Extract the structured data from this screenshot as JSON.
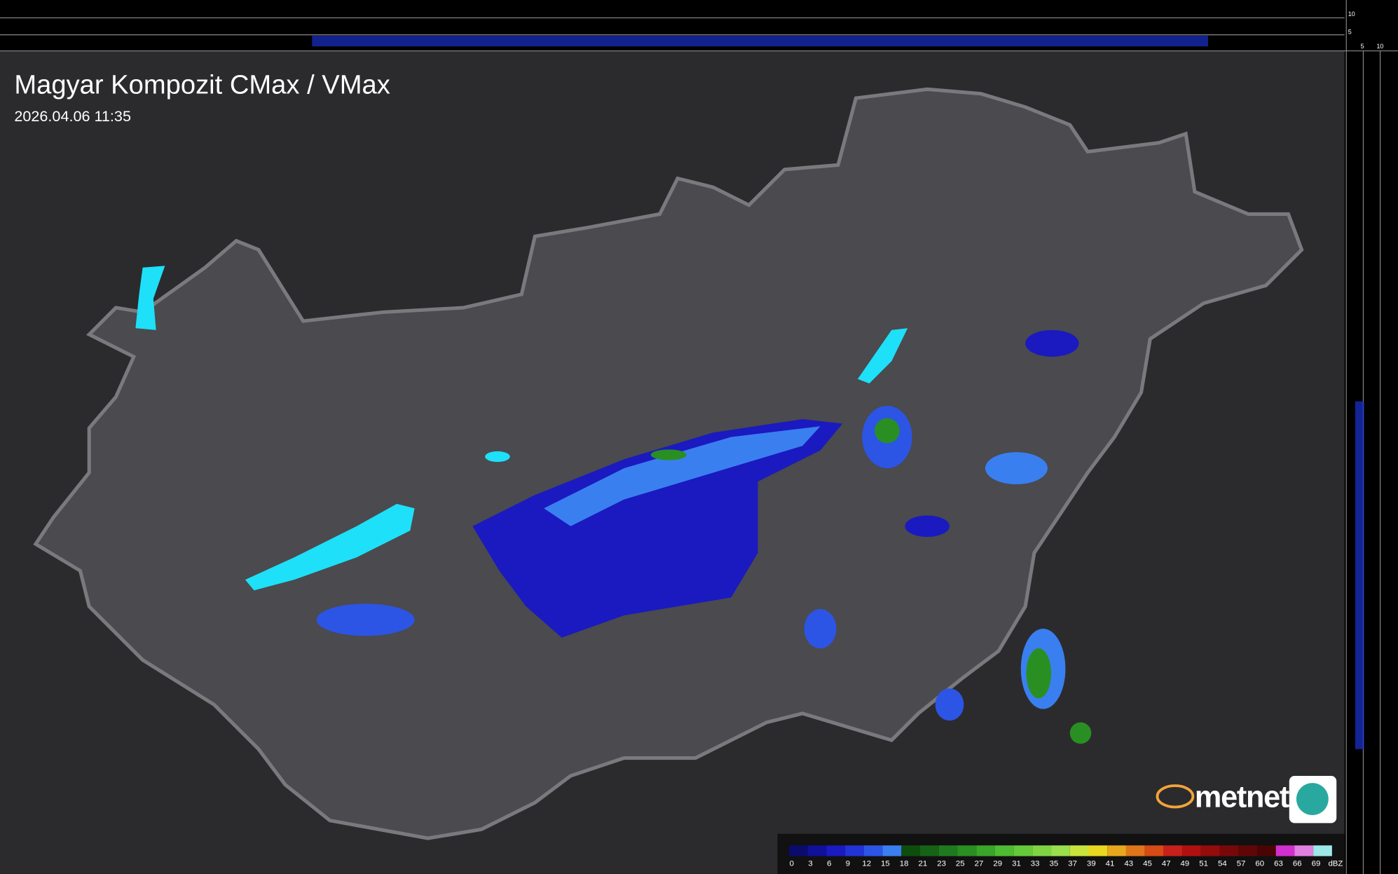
{
  "header": {
    "title": "Magyar Kompozit CMax / VMax",
    "timestamp": "2026.04.06 11:35"
  },
  "profile_labels": {
    "top": [
      "10",
      "5"
    ],
    "side": [
      "5",
      "10"
    ]
  },
  "logo": {
    "text": "metnet"
  },
  "legend": {
    "unit": "dBZ",
    "labels": [
      0,
      3,
      6,
      9,
      12,
      15,
      18,
      21,
      23,
      25,
      27,
      29,
      31,
      33,
      35,
      37,
      39,
      41,
      43,
      45,
      47,
      49,
      51,
      54,
      57,
      60,
      63,
      66,
      69
    ],
    "colors": [
      "#0b0b6e",
      "#10109a",
      "#1a1ac0",
      "#2233d8",
      "#2c55e6",
      "#3a7ff0",
      "#0d4d0d",
      "#166316",
      "#1f7a1f",
      "#2a8f22",
      "#3aa52a",
      "#4ebb32",
      "#66c93a",
      "#80d444",
      "#9adf4e",
      "#c8e43c",
      "#e8d820",
      "#e6a81c",
      "#e0761a",
      "#d84a16",
      "#c8201a",
      "#b01010",
      "#940c0c",
      "#780808",
      "#600606",
      "#4a0404",
      "#d030d0",
      "#e080e0",
      "#9ee8e8"
    ]
  }
}
